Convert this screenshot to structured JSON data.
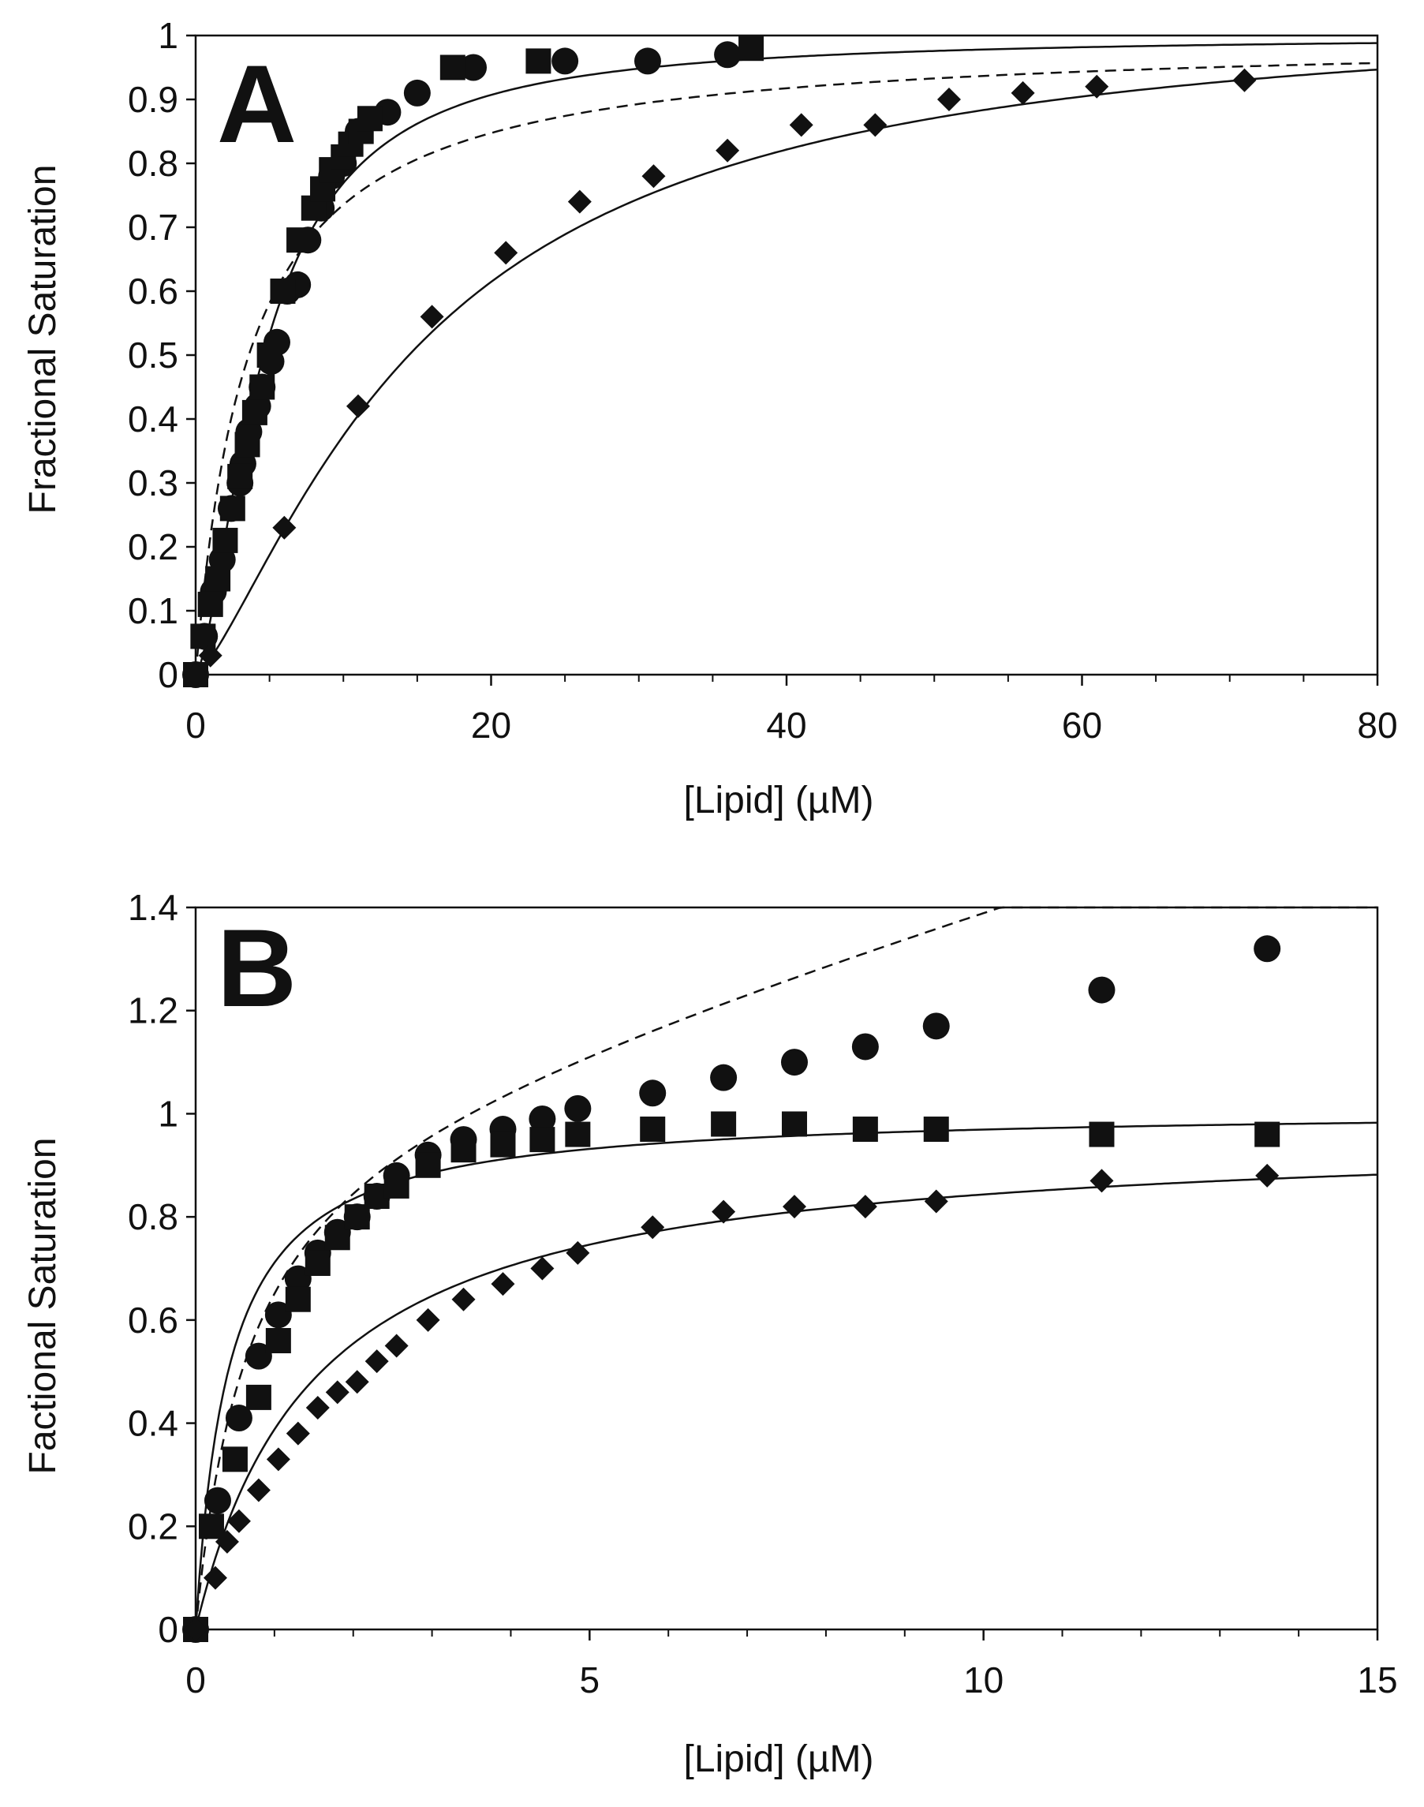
{
  "chart_data": [
    {
      "type": "scatter",
      "panel_label": "A",
      "xlabel": "[Lipid] (µM)",
      "ylabel": "Fractional Saturation",
      "xlim": [
        0,
        80
      ],
      "ylim": [
        0,
        1
      ],
      "xticks": [
        "0",
        "20",
        "40",
        "60",
        "80"
      ],
      "yticks": [
        "0",
        "0.1",
        "0.2",
        "0.3",
        "0.4",
        "0.5",
        "0.6",
        "0.7",
        "0.8",
        "0.9",
        "1"
      ],
      "series": [
        {
          "name": "circles",
          "marker": "circle",
          "line": "dashed",
          "x": [
            0,
            0.6,
            1.2,
            1.8,
            2.4,
            3.0,
            3.2,
            3.6,
            4.2,
            4.5,
            5.1,
            5.5,
            6.2,
            6.9,
            7.6,
            8.5,
            9.2,
            10.0,
            11.0,
            13.0,
            15.0,
            18.8,
            25.0,
            30.6,
            36.0
          ],
          "y": [
            0,
            0.06,
            0.13,
            0.18,
            0.26,
            0.3,
            0.33,
            0.38,
            0.42,
            0.45,
            0.49,
            0.52,
            0.6,
            0.61,
            0.68,
            0.73,
            0.78,
            0.8,
            0.85,
            0.88,
            0.91,
            0.95,
            0.96,
            0.96,
            0.97
          ]
        },
        {
          "name": "squares",
          "marker": "square",
          "line": "solid",
          "x": [
            0,
            0.5,
            1.0,
            1.5,
            2.0,
            2.5,
            3.0,
            3.5,
            4.0,
            4.5,
            5.0,
            5.9,
            7.0,
            8.0,
            8.6,
            9.2,
            10.0,
            10.5,
            11.2,
            11.8,
            17.4,
            23.2,
            37.6
          ],
          "y": [
            0,
            0.06,
            0.11,
            0.15,
            0.21,
            0.26,
            0.31,
            0.36,
            0.41,
            0.45,
            0.5,
            0.6,
            0.68,
            0.73,
            0.76,
            0.79,
            0.81,
            0.83,
            0.85,
            0.87,
            0.95,
            0.96,
            0.98
          ]
        },
        {
          "name": "diamonds",
          "marker": "diamond",
          "line": "solid",
          "x": [
            0,
            1.0,
            6.0,
            11.0,
            16.0,
            21.0,
            26.0,
            31.0,
            36.0,
            41.0,
            46.0,
            51.0,
            56.0,
            61.0,
            71.0
          ],
          "y": [
            0,
            0.03,
            0.23,
            0.42,
            0.56,
            0.66,
            0.74,
            0.78,
            0.82,
            0.86,
            0.86,
            0.9,
            0.91,
            0.92,
            0.93
          ]
        }
      ]
    },
    {
      "type": "scatter",
      "panel_label": "B",
      "xlabel": "[Lipid] (µM)",
      "ylabel": "Factional Saturation",
      "xlim": [
        0,
        15
      ],
      "ylim": [
        0,
        1.4
      ],
      "xticks": [
        "0",
        "5",
        "10",
        "15"
      ],
      "yticks": [
        "0",
        "0.2",
        "0.4",
        "0.6",
        "0.8",
        "1",
        "1.2",
        "1.4"
      ],
      "series": [
        {
          "name": "circles",
          "marker": "circle",
          "line": "dashed",
          "x": [
            0,
            0.28,
            0.55,
            0.8,
            1.05,
            1.3,
            1.55,
            1.8,
            2.05,
            2.3,
            2.55,
            2.95,
            3.4,
            3.9,
            4.4,
            4.85,
            5.8,
            6.7,
            7.6,
            8.5,
            9.4,
            11.5,
            13.6
          ],
          "y": [
            0,
            0.25,
            0.41,
            0.53,
            0.61,
            0.68,
            0.73,
            0.77,
            0.8,
            0.84,
            0.88,
            0.92,
            0.95,
            0.97,
            0.99,
            1.01,
            1.04,
            1.07,
            1.1,
            1.13,
            1.17,
            1.24,
            1.32
          ]
        },
        {
          "name": "squares",
          "marker": "square",
          "line": "solid",
          "x": [
            0,
            0.2,
            0.5,
            0.8,
            1.05,
            1.3,
            1.55,
            1.8,
            2.05,
            2.3,
            2.55,
            2.95,
            3.4,
            3.9,
            4.4,
            4.85,
            5.8,
            6.7,
            7.6,
            8.5,
            9.4,
            11.5,
            13.6
          ],
          "y": [
            0,
            0.2,
            0.33,
            0.45,
            0.56,
            0.64,
            0.71,
            0.76,
            0.8,
            0.84,
            0.86,
            0.9,
            0.93,
            0.94,
            0.95,
            0.96,
            0.97,
            0.98,
            0.98,
            0.97,
            0.97,
            0.96,
            0.96
          ]
        },
        {
          "name": "diamonds",
          "marker": "diamond",
          "line": "solid",
          "x": [
            0,
            0.25,
            0.4,
            0.55,
            0.8,
            1.05,
            1.3,
            1.55,
            1.8,
            2.05,
            2.3,
            2.55,
            2.95,
            3.4,
            3.9,
            4.4,
            4.85,
            5.8,
            6.7,
            7.6,
            8.5,
            9.4,
            11.5,
            13.6
          ],
          "y": [
            0,
            0.1,
            0.17,
            0.21,
            0.27,
            0.33,
            0.38,
            0.43,
            0.46,
            0.48,
            0.52,
            0.55,
            0.6,
            0.64,
            0.67,
            0.7,
            0.73,
            0.78,
            0.81,
            0.82,
            0.82,
            0.83,
            0.87,
            0.88
          ]
        }
      ]
    }
  ]
}
